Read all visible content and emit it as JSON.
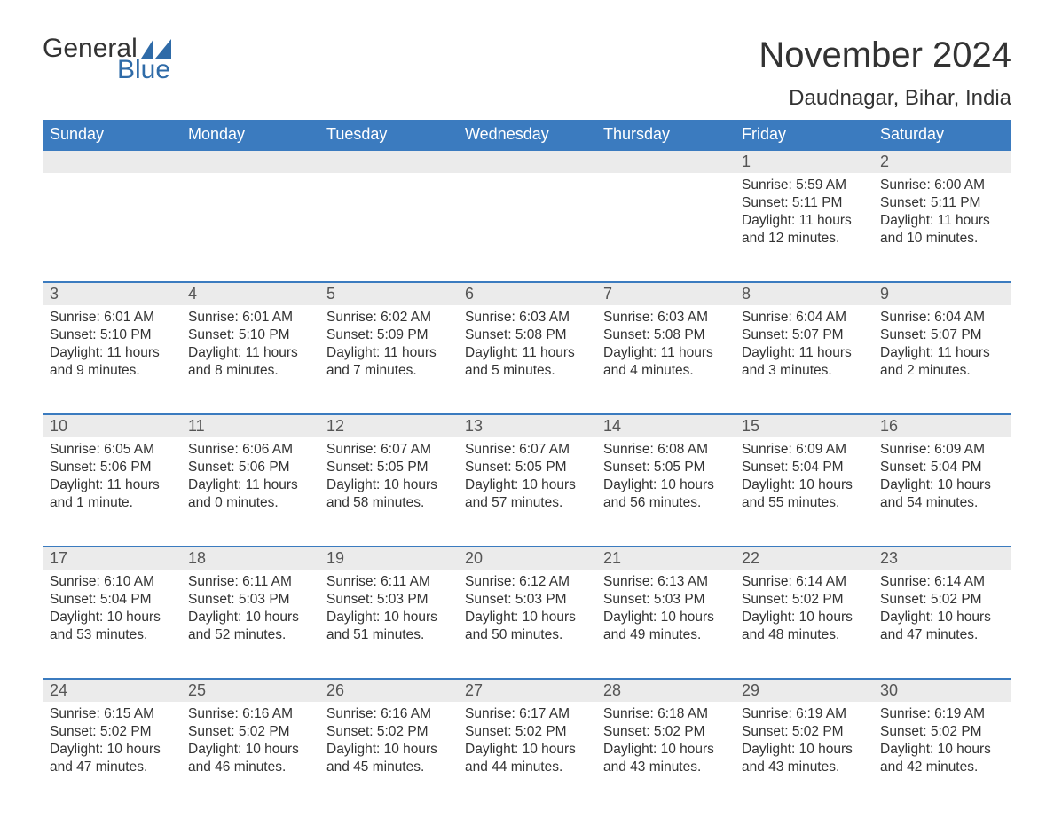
{
  "logo": {
    "word1": "General",
    "word2": "Blue",
    "flag_color": "#2f6ba8"
  },
  "title": "November 2024",
  "location": "Daudnagar, Bihar, India",
  "colors": {
    "header_bg": "#3b7bbf",
    "header_text": "#ffffff",
    "daynum_bg": "#ebebeb",
    "daynum_text": "#555555",
    "body_text": "#333333",
    "rule": "#3b7bbf",
    "logo_blue": "#2f6ba8"
  },
  "weekdays": [
    "Sunday",
    "Monday",
    "Tuesday",
    "Wednesday",
    "Thursday",
    "Friday",
    "Saturday"
  ],
  "weeks": [
    [
      null,
      null,
      null,
      null,
      null,
      {
        "n": "1",
        "sunrise": "Sunrise: 5:59 AM",
        "sunset": "Sunset: 5:11 PM",
        "day1": "Daylight: 11 hours",
        "day2": "and 12 minutes."
      },
      {
        "n": "2",
        "sunrise": "Sunrise: 6:00 AM",
        "sunset": "Sunset: 5:11 PM",
        "day1": "Daylight: 11 hours",
        "day2": "and 10 minutes."
      }
    ],
    [
      {
        "n": "3",
        "sunrise": "Sunrise: 6:01 AM",
        "sunset": "Sunset: 5:10 PM",
        "day1": "Daylight: 11 hours",
        "day2": "and 9 minutes."
      },
      {
        "n": "4",
        "sunrise": "Sunrise: 6:01 AM",
        "sunset": "Sunset: 5:10 PM",
        "day1": "Daylight: 11 hours",
        "day2": "and 8 minutes."
      },
      {
        "n": "5",
        "sunrise": "Sunrise: 6:02 AM",
        "sunset": "Sunset: 5:09 PM",
        "day1": "Daylight: 11 hours",
        "day2": "and 7 minutes."
      },
      {
        "n": "6",
        "sunrise": "Sunrise: 6:03 AM",
        "sunset": "Sunset: 5:08 PM",
        "day1": "Daylight: 11 hours",
        "day2": "and 5 minutes."
      },
      {
        "n": "7",
        "sunrise": "Sunrise: 6:03 AM",
        "sunset": "Sunset: 5:08 PM",
        "day1": "Daylight: 11 hours",
        "day2": "and 4 minutes."
      },
      {
        "n": "8",
        "sunrise": "Sunrise: 6:04 AM",
        "sunset": "Sunset: 5:07 PM",
        "day1": "Daylight: 11 hours",
        "day2": "and 3 minutes."
      },
      {
        "n": "9",
        "sunrise": "Sunrise: 6:04 AM",
        "sunset": "Sunset: 5:07 PM",
        "day1": "Daylight: 11 hours",
        "day2": "and 2 minutes."
      }
    ],
    [
      {
        "n": "10",
        "sunrise": "Sunrise: 6:05 AM",
        "sunset": "Sunset: 5:06 PM",
        "day1": "Daylight: 11 hours",
        "day2": "and 1 minute."
      },
      {
        "n": "11",
        "sunrise": "Sunrise: 6:06 AM",
        "sunset": "Sunset: 5:06 PM",
        "day1": "Daylight: 11 hours",
        "day2": "and 0 minutes."
      },
      {
        "n": "12",
        "sunrise": "Sunrise: 6:07 AM",
        "sunset": "Sunset: 5:05 PM",
        "day1": "Daylight: 10 hours",
        "day2": "and 58 minutes."
      },
      {
        "n": "13",
        "sunrise": "Sunrise: 6:07 AM",
        "sunset": "Sunset: 5:05 PM",
        "day1": "Daylight: 10 hours",
        "day2": "and 57 minutes."
      },
      {
        "n": "14",
        "sunrise": "Sunrise: 6:08 AM",
        "sunset": "Sunset: 5:05 PM",
        "day1": "Daylight: 10 hours",
        "day2": "and 56 minutes."
      },
      {
        "n": "15",
        "sunrise": "Sunrise: 6:09 AM",
        "sunset": "Sunset: 5:04 PM",
        "day1": "Daylight: 10 hours",
        "day2": "and 55 minutes."
      },
      {
        "n": "16",
        "sunrise": "Sunrise: 6:09 AM",
        "sunset": "Sunset: 5:04 PM",
        "day1": "Daylight: 10 hours",
        "day2": "and 54 minutes."
      }
    ],
    [
      {
        "n": "17",
        "sunrise": "Sunrise: 6:10 AM",
        "sunset": "Sunset: 5:04 PM",
        "day1": "Daylight: 10 hours",
        "day2": "and 53 minutes."
      },
      {
        "n": "18",
        "sunrise": "Sunrise: 6:11 AM",
        "sunset": "Sunset: 5:03 PM",
        "day1": "Daylight: 10 hours",
        "day2": "and 52 minutes."
      },
      {
        "n": "19",
        "sunrise": "Sunrise: 6:11 AM",
        "sunset": "Sunset: 5:03 PM",
        "day1": "Daylight: 10 hours",
        "day2": "and 51 minutes."
      },
      {
        "n": "20",
        "sunrise": "Sunrise: 6:12 AM",
        "sunset": "Sunset: 5:03 PM",
        "day1": "Daylight: 10 hours",
        "day2": "and 50 minutes."
      },
      {
        "n": "21",
        "sunrise": "Sunrise: 6:13 AM",
        "sunset": "Sunset: 5:03 PM",
        "day1": "Daylight: 10 hours",
        "day2": "and 49 minutes."
      },
      {
        "n": "22",
        "sunrise": "Sunrise: 6:14 AM",
        "sunset": "Sunset: 5:02 PM",
        "day1": "Daylight: 10 hours",
        "day2": "and 48 minutes."
      },
      {
        "n": "23",
        "sunrise": "Sunrise: 6:14 AM",
        "sunset": "Sunset: 5:02 PM",
        "day1": "Daylight: 10 hours",
        "day2": "and 47 minutes."
      }
    ],
    [
      {
        "n": "24",
        "sunrise": "Sunrise: 6:15 AM",
        "sunset": "Sunset: 5:02 PM",
        "day1": "Daylight: 10 hours",
        "day2": "and 47 minutes."
      },
      {
        "n": "25",
        "sunrise": "Sunrise: 6:16 AM",
        "sunset": "Sunset: 5:02 PM",
        "day1": "Daylight: 10 hours",
        "day2": "and 46 minutes."
      },
      {
        "n": "26",
        "sunrise": "Sunrise: 6:16 AM",
        "sunset": "Sunset: 5:02 PM",
        "day1": "Daylight: 10 hours",
        "day2": "and 45 minutes."
      },
      {
        "n": "27",
        "sunrise": "Sunrise: 6:17 AM",
        "sunset": "Sunset: 5:02 PM",
        "day1": "Daylight: 10 hours",
        "day2": "and 44 minutes."
      },
      {
        "n": "28",
        "sunrise": "Sunrise: 6:18 AM",
        "sunset": "Sunset: 5:02 PM",
        "day1": "Daylight: 10 hours",
        "day2": "and 43 minutes."
      },
      {
        "n": "29",
        "sunrise": "Sunrise: 6:19 AM",
        "sunset": "Sunset: 5:02 PM",
        "day1": "Daylight: 10 hours",
        "day2": "and 43 minutes."
      },
      {
        "n": "30",
        "sunrise": "Sunrise: 6:19 AM",
        "sunset": "Sunset: 5:02 PM",
        "day1": "Daylight: 10 hours",
        "day2": "and 42 minutes."
      }
    ]
  ]
}
